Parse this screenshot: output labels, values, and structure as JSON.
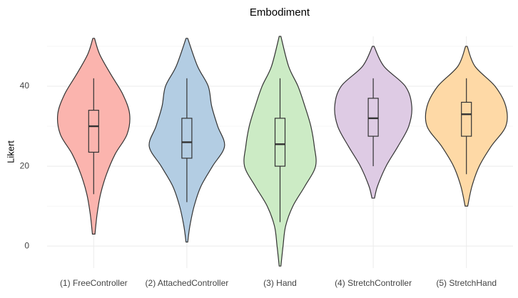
{
  "chart_data": {
    "type": "violin",
    "title": "Embodiment",
    "y_label": "Likert",
    "categories": [
      "(1) FreeController",
      "(2) AttachedController",
      "(3) Hand",
      "(4) StretchController",
      "(5) StretchHand"
    ],
    "colors": [
      "#fbb4ae",
      "#b3cde3",
      "#ccebc5",
      "#decbe4",
      "#fed9a6"
    ],
    "violins": [
      {
        "y": [
          3,
          8,
          13,
          18,
          23,
          28,
          33,
          38,
          43,
          48,
          52
        ],
        "width": [
          0.03,
          0.08,
          0.16,
          0.3,
          0.5,
          0.78,
          0.84,
          0.68,
          0.4,
          0.14,
          0.02
        ]
      },
      {
        "y": [
          1,
          5,
          10,
          15,
          20,
          25,
          30,
          35,
          40,
          45,
          52
        ],
        "width": [
          0.02,
          0.07,
          0.17,
          0.33,
          0.6,
          0.88,
          0.72,
          0.58,
          0.5,
          0.25,
          0.02
        ]
      },
      {
        "y": [
          -5,
          0,
          5,
          10,
          15,
          20,
          25,
          30,
          35,
          40,
          45,
          52.5
        ],
        "width": [
          0.02,
          0.07,
          0.13,
          0.3,
          0.58,
          0.83,
          0.8,
          0.72,
          0.58,
          0.42,
          0.2,
          0.02
        ]
      },
      {
        "y": [
          12,
          15,
          20,
          25,
          30,
          35,
          40,
          45,
          50
        ],
        "width": [
          0.03,
          0.1,
          0.3,
          0.58,
          0.83,
          0.9,
          0.75,
          0.25,
          0.02
        ]
      },
      {
        "y": [
          10,
          15,
          20,
          25,
          30,
          35,
          40,
          45,
          50
        ],
        "width": [
          0.03,
          0.13,
          0.3,
          0.58,
          0.92,
          0.92,
          0.67,
          0.2,
          0.02
        ]
      }
    ],
    "whisker_low": [
      13,
      11,
      6,
      20,
      18
    ],
    "q1": [
      23.5,
      22,
      20,
      27.5,
      27.5
    ],
    "median": [
      30,
      26,
      25.5,
      32,
      33
    ],
    "q3": [
      34,
      32,
      32,
      37,
      36
    ],
    "whisker_high": [
      42,
      42,
      42,
      42,
      42
    ],
    "ylim": [
      -5.5,
      52.5
    ],
    "yticks": [
      0,
      20,
      40
    ],
    "minor_yticks": [
      10,
      30,
      50
    ],
    "grid": true
  }
}
